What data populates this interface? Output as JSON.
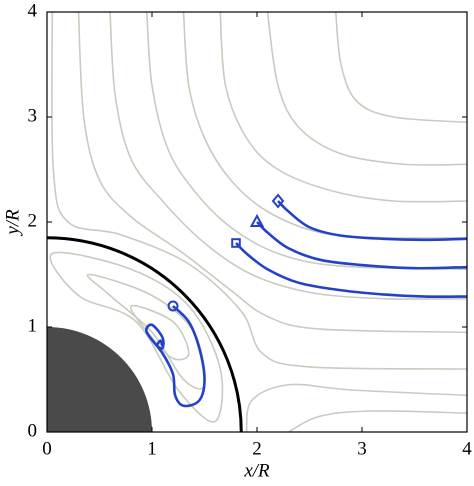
{
  "chart_data": {
    "type": "line",
    "xlabel": "x/R",
    "ylabel": "y/R",
    "xlim": [
      0,
      4
    ],
    "ylim": [
      0,
      4
    ],
    "xticks": [
      0,
      1,
      2,
      3,
      4
    ],
    "yticks": [
      0,
      1,
      2,
      3,
      4
    ],
    "shapes": [
      {
        "type": "disk",
        "r": 1,
        "color": "#4a4a4a"
      },
      {
        "type": "arc",
        "r": 1.85,
        "color": "#000000"
      }
    ],
    "series": [
      {
        "color": "#c9cbbf",
        "x": [
          2.75,
          2.8,
          2.95,
          3.3,
          4
        ],
        "y": [
          4,
          3.5,
          3.15,
          3.0,
          2.95
        ]
      },
      {
        "color": "#c9cbbf",
        "x": [
          2.1,
          2.2,
          2.4,
          2.8,
          3.4,
          4
        ],
        "y": [
          4,
          3.3,
          2.9,
          2.65,
          2.55,
          2.55
        ]
      },
      {
        "color": "#c9cbbf",
        "x": [
          1.65,
          1.7,
          1.9,
          2.2,
          2.7,
          3.3,
          4
        ],
        "y": [
          4,
          3.3,
          2.8,
          2.5,
          2.3,
          2.2,
          2.2
        ]
      },
      {
        "color": "#c9cbbf",
        "x": [
          1.3,
          1.35,
          1.5,
          1.75,
          2.1,
          2.6,
          3.2,
          4
        ],
        "y": [
          4,
          3.3,
          2.8,
          2.4,
          2.1,
          1.9,
          1.85,
          1.85
        ]
      },
      {
        "color": "#c9cbbf",
        "x": [
          0.95,
          1.0,
          1.15,
          1.4,
          1.75,
          2.2,
          2.8,
          4
        ],
        "y": [
          4,
          3.3,
          2.7,
          2.3,
          1.95,
          1.7,
          1.58,
          1.55
        ]
      },
      {
        "color": "#c9cbbf",
        "x": [
          0.6,
          0.65,
          0.8,
          1.1,
          1.5,
          1.95,
          2.5,
          3.2,
          4
        ],
        "y": [
          4,
          3.2,
          2.6,
          2.2,
          1.8,
          1.5,
          1.33,
          1.27,
          1.27
        ]
      },
      {
        "color": "#c9cbbf",
        "x": [
          0.3,
          0.35,
          0.5,
          0.8,
          1.3,
          1.75,
          2.1,
          2.6,
          4
        ],
        "y": [
          4,
          3.0,
          2.4,
          2.05,
          1.7,
          1.35,
          1.1,
          0.98,
          0.95
        ]
      },
      {
        "color": "#c9cbbf",
        "x": [
          0.05,
          0.06,
          0.2,
          0.7,
          1.35,
          1.85,
          2.05,
          2.5,
          4
        ],
        "y": [
          4,
          2.5,
          2.0,
          1.88,
          1.6,
          1.15,
          0.75,
          0.62,
          0.6
        ]
      },
      {
        "color": "#c9cbbf",
        "x": [
          1.9,
          1.95,
          2.3,
          2.9,
          4
        ],
        "y": [
          0,
          0.3,
          0.45,
          0.4,
          0.35
        ]
      },
      {
        "color": "#c9cbbf",
        "x": [
          2.3,
          2.6,
          3.1,
          4
        ],
        "y": [
          0,
          0.15,
          0.2,
          0.18
        ]
      },
      {
        "color": "#c9cbbf",
        "closed": true,
        "x": [
          0.05,
          0.8,
          1.35,
          1.65,
          1.6,
          1.25,
          0.85,
          0.3
        ],
        "y": [
          1.7,
          1.55,
          1.2,
          0.6,
          0.1,
          0.4,
          1.05,
          1.3
        ]
      },
      {
        "color": "#c9cbbf",
        "closed": true,
        "x": [
          0.4,
          1.0,
          1.4,
          1.5,
          1.3,
          1.0,
          0.6
        ],
        "y": [
          1.5,
          1.3,
          0.95,
          0.45,
          0.5,
          0.95,
          1.3
        ]
      },
      {
        "color": "#c9cbbf",
        "closed": true,
        "x": [
          0.8,
          1.2,
          1.35,
          1.2,
          1.0
        ],
        "y": [
          1.2,
          1.05,
          0.75,
          0.7,
          0.9
        ]
      },
      {
        "color": "#2342c8",
        "marker": "circle",
        "x": [
          1.2,
          1.35,
          1.45,
          1.5,
          1.45,
          1.3,
          1.22,
          1.2,
          1.1,
          0.95,
          1.0,
          1.1,
          1.1,
          1.05,
          1.08,
          1.1
        ],
        "y": [
          1.2,
          1.05,
          0.8,
          0.5,
          0.3,
          0.25,
          0.35,
          0.55,
          0.75,
          0.95,
          1.02,
          0.9,
          0.8,
          0.82,
          0.87,
          0.82
        ]
      },
      {
        "color": "#2342c8",
        "marker": "square",
        "x": [
          1.8,
          1.9,
          2.1,
          2.4,
          2.8,
          3.2,
          3.6,
          4
        ],
        "y": [
          1.8,
          1.7,
          1.55,
          1.42,
          1.35,
          1.31,
          1.29,
          1.29
        ]
      },
      {
        "color": "#2342c8",
        "marker": "triangle",
        "x": [
          2.0,
          2.1,
          2.3,
          2.6,
          3.0,
          3.5,
          4
        ],
        "y": [
          2.0,
          1.9,
          1.75,
          1.64,
          1.59,
          1.56,
          1.57
        ]
      },
      {
        "color": "#2342c8",
        "marker": "diamond",
        "x": [
          2.2,
          2.3,
          2.5,
          2.8,
          3.2,
          3.6,
          4
        ],
        "y": [
          2.2,
          2.1,
          1.95,
          1.87,
          1.84,
          1.83,
          1.84
        ]
      }
    ]
  }
}
